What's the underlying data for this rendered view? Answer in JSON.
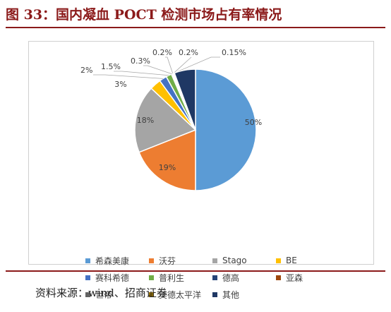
{
  "figure_title": "图 33：国内凝血 POCT 检测市场占有率情况",
  "source_note": "资料来源：wind、招商证券",
  "chart_data": {
    "type": "pie",
    "title": "",
    "legend_placement": "bottom",
    "slices": [
      {
        "name": "希森美康",
        "value": 50,
        "label": "50%",
        "color": "#5b9bd5"
      },
      {
        "name": "沃芬",
        "value": 19,
        "label": "19%",
        "color": "#ed7d31"
      },
      {
        "name": "Stago",
        "value": 18,
        "label": "18%",
        "color": "#a5a5a5"
      },
      {
        "name": "BE",
        "value": 3,
        "label": "3%",
        "color": "#ffc000"
      },
      {
        "name": "赛科希德",
        "value": 2,
        "label": "2%",
        "color": "#4472c4"
      },
      {
        "name": "普利生",
        "value": 1.5,
        "label": "1.5%",
        "color": "#70ad47"
      },
      {
        "name": "德高",
        "value": 0.3,
        "label": "0.3%",
        "color": "#264478"
      },
      {
        "name": "亚森",
        "value": 0.2,
        "label": "0.2%",
        "color": "#9e480e"
      },
      {
        "name": "世帝",
        "value": 0.2,
        "label": "0.2%",
        "color": "#636363"
      },
      {
        "name": "美德太平洋",
        "value": 0.15,
        "label": "0.15%",
        "color": "#997300"
      },
      {
        "name": "其他",
        "value": 5.65,
        "label": "",
        "color": "#1f3864"
      }
    ]
  }
}
